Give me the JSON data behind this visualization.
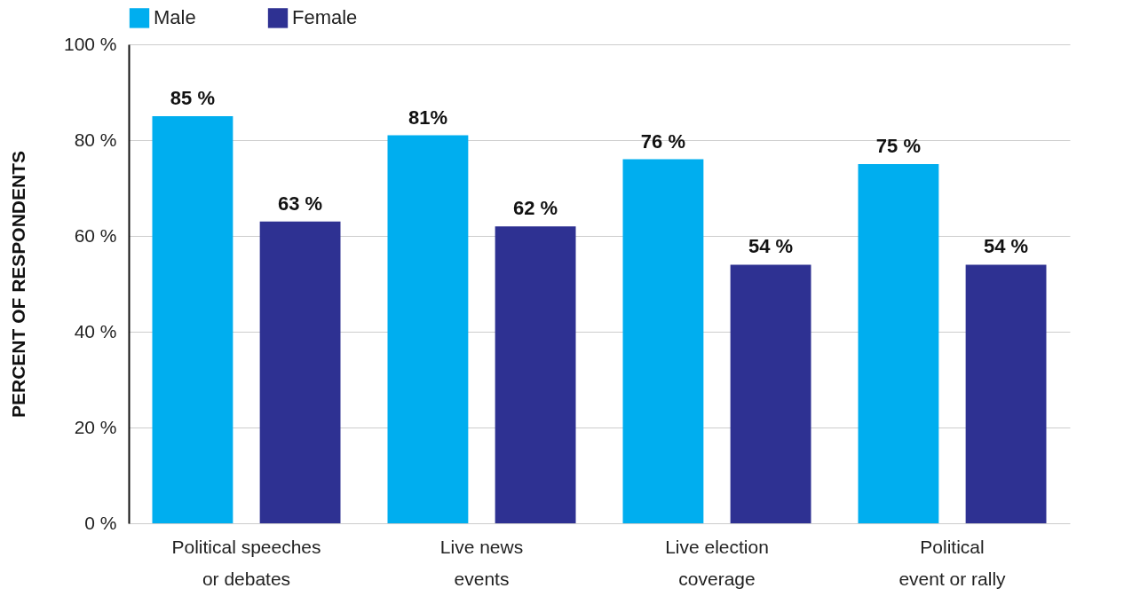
{
  "chart_data": {
    "type": "bar",
    "ylabel": "PERCENT OF RESPONDENTS",
    "categories": [
      "Political speeches or debates",
      "Live news events",
      "Live election coverage",
      "Political event or rally"
    ],
    "series": [
      {
        "name": "Male",
        "color": "#00aeef",
        "values": [
          85,
          81,
          76,
          75
        ],
        "value_labels": [
          "85 %",
          "81%",
          "76 %",
          "75 %"
        ]
      },
      {
        "name": "Female",
        "color": "#2e3192",
        "values": [
          63,
          62,
          54,
          54
        ],
        "value_labels": [
          "63 %",
          "62 %",
          "54 %",
          "54 %"
        ]
      }
    ],
    "ylim": [
      0,
      100
    ],
    "yticks": [
      {
        "value": 0,
        "label": "0 %"
      },
      {
        "value": 20,
        "label": "20 %"
      },
      {
        "value": 40,
        "label": "40 %"
      },
      {
        "value": 60,
        "label": "60 %"
      },
      {
        "value": 80,
        "label": "80 %"
      },
      {
        "value": 100,
        "label": "100 %"
      }
    ],
    "grid": "y",
    "legend": "top"
  }
}
